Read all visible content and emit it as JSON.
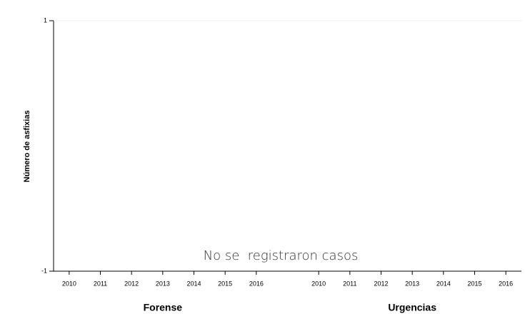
{
  "chart_data": [
    {
      "type": "line",
      "xlabel": "Forense",
      "ylabel": "Número de asfixias",
      "categories": [
        "2010",
        "2011",
        "2012",
        "2013",
        "2014",
        "2015",
        "2016"
      ],
      "ylim": [
        -1,
        1
      ],
      "yticks": [
        -1,
        1
      ]
    },
    {
      "type": "line",
      "xlabel": "Urgencias",
      "categories": [
        "2010",
        "2011",
        "2012",
        "2013",
        "2014",
        "2015",
        "2016"
      ]
    }
  ],
  "annotation": "No se  registraron casos"
}
